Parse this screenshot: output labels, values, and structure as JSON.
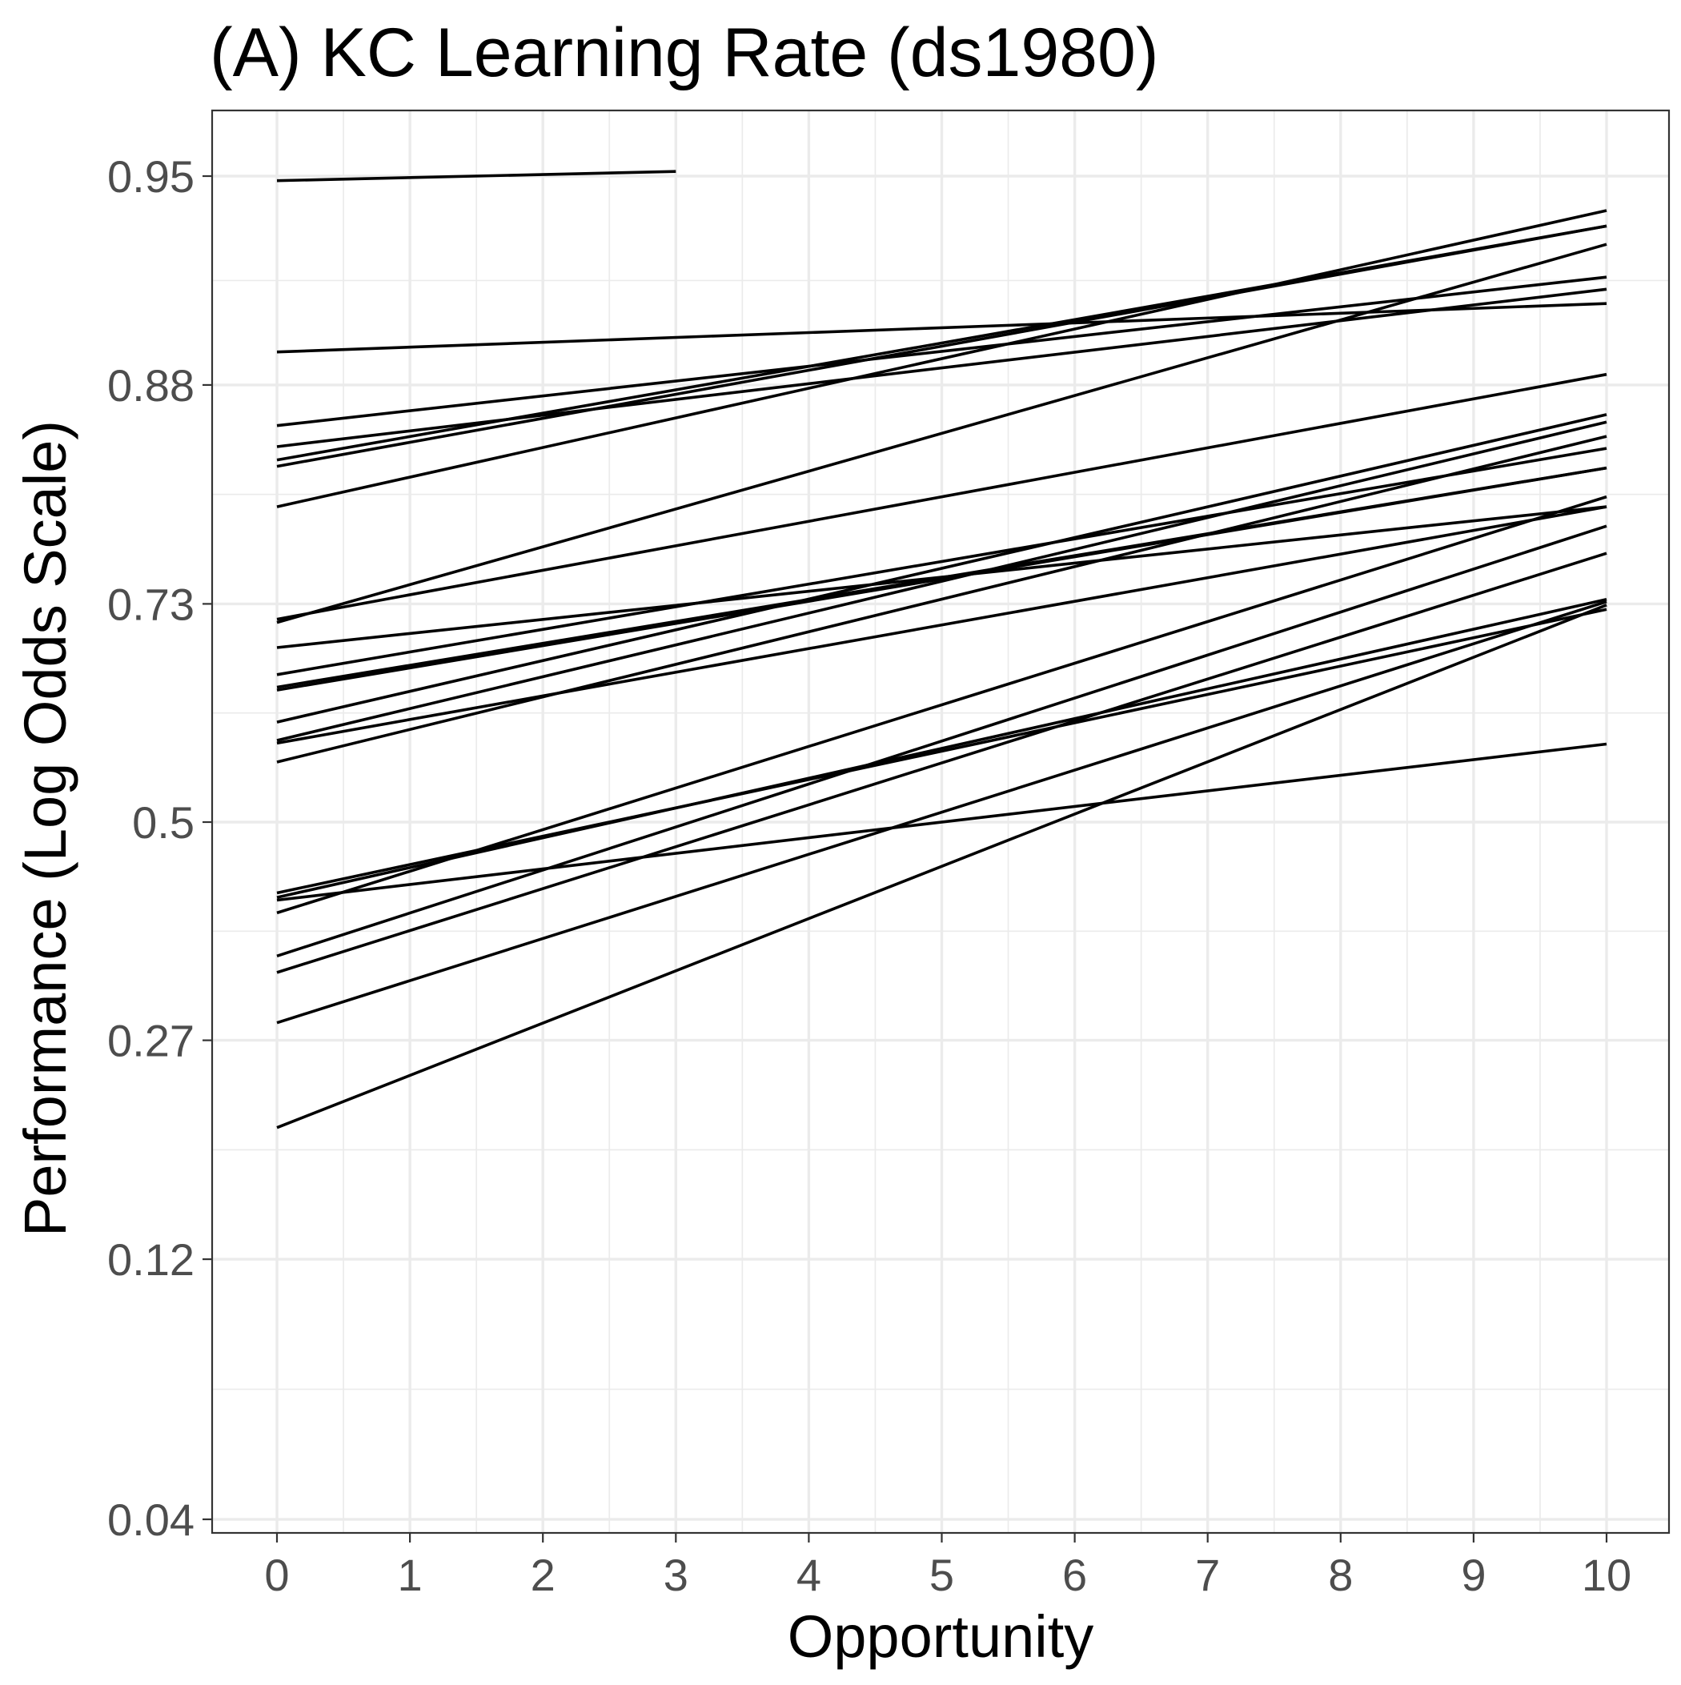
{
  "chart_data": {
    "type": "line",
    "title": "(A) KC Learning Rate (ds1980)",
    "xlabel": "Opportunity",
    "ylabel": "Performance (Log Odds Scale)",
    "x_ticks": [
      0,
      1,
      2,
      3,
      4,
      5,
      6,
      7,
      8,
      9,
      10
    ],
    "x_tick_labels": [
      "0",
      "1",
      "2",
      "3",
      "4",
      "5",
      "6",
      "7",
      "8",
      "9",
      "10"
    ],
    "y_scale": "logit",
    "y_ticks": [
      0.04,
      0.12,
      0.27,
      0.5,
      0.73,
      0.88,
      0.95
    ],
    "y_tick_labels": [
      "0.04",
      "0.12",
      "0.27",
      "0.5",
      "0.73",
      "0.88",
      "0.95"
    ],
    "xlim": [
      -0.5,
      10.5
    ],
    "ylim": [
      0.025,
      0.97
    ],
    "grid": true,
    "series": [
      {
        "x": [
          0,
          3
        ],
        "y": [
          0.949,
          0.951
        ]
      },
      {
        "x": [
          0,
          10
        ],
        "y": [
          0.895,
          0.914
        ]
      },
      {
        "x": [
          0,
          10
        ],
        "y": [
          0.859,
          0.923
        ]
      },
      {
        "x": [
          0,
          10
        ],
        "y": [
          0.847,
          0.919
        ]
      },
      {
        "x": [
          0,
          10
        ],
        "y": [
          0.839,
          0.938
        ]
      },
      {
        "x": [
          0,
          10
        ],
        "y": [
          0.835,
          0.938
        ]
      },
      {
        "x": [
          0,
          10
        ],
        "y": [
          0.808,
          0.942
        ]
      },
      {
        "x": [
          0,
          10
        ],
        "y": [
          0.716,
          0.885
        ]
      },
      {
        "x": [
          0,
          10
        ],
        "y": [
          0.713,
          0.933
        ]
      },
      {
        "x": [
          0,
          10
        ],
        "y": [
          0.689,
          0.808
        ]
      },
      {
        "x": [
          0,
          10
        ],
        "y": [
          0.662,
          0.846
        ]
      },
      {
        "x": [
          0,
          10
        ],
        "y": [
          0.649,
          0.834
        ]
      },
      {
        "x": [
          0,
          10
        ],
        "y": [
          0.646,
          0.834
        ]
      },
      {
        "x": [
          0,
          10
        ],
        "y": [
          0.612,
          0.865
        ]
      },
      {
        "x": [
          0,
          10
        ],
        "y": [
          0.592,
          0.861
        ]
      },
      {
        "x": [
          0,
          10
        ],
        "y": [
          0.589,
          0.808
        ]
      },
      {
        "x": [
          0,
          10
        ],
        "y": [
          0.568,
          0.853
        ]
      },
      {
        "x": [
          0,
          10
        ],
        "y": [
          0.42,
          0.725
        ]
      },
      {
        "x": [
          0,
          10
        ],
        "y": [
          0.415,
          0.734
        ]
      },
      {
        "x": [
          0,
          10
        ],
        "y": [
          0.398,
          0.815
        ]
      },
      {
        "x": [
          0,
          10
        ],
        "y": [
          0.352,
          0.794
        ]
      },
      {
        "x": [
          0,
          10
        ],
        "y": [
          0.335,
          0.773
        ]
      },
      {
        "x": [
          0,
          10
        ],
        "y": [
          0.286,
          0.732
        ]
      },
      {
        "x": [
          0,
          10
        ],
        "y": [
          0.199,
          0.729
        ]
      },
      {
        "x": [
          0,
          10
        ],
        "y": [
          0.412,
          0.588
        ]
      }
    ]
  }
}
